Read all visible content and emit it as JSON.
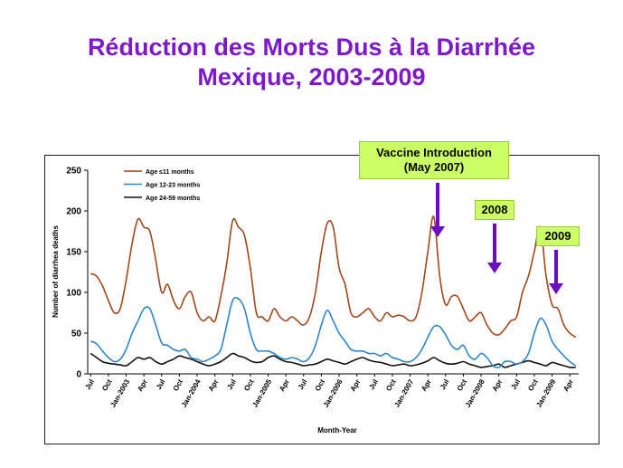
{
  "title": {
    "line1": "Réduction des Morts Dus à la Diarrhée",
    "line2": "Mexique, 2003-2009"
  },
  "callouts": {
    "vaccine_line1": "Vaccine Introduction",
    "vaccine_line2": "(May 2007)",
    "y2008": "2008",
    "y2009": "2009"
  },
  "colors": {
    "title": "#7c19c9",
    "arrow": "#6a0fc0",
    "callout_bg": "#ccff66",
    "series_11": "#a0471c",
    "series_12_23": "#2e86c9",
    "series_24_59": "#111111"
  },
  "chart_data": {
    "type": "line",
    "xlabel": "Month-Year",
    "ylabel": "Number of diarrhea deaths",
    "ylim": [
      0,
      250
    ],
    "yticks": [
      0,
      50,
      100,
      150,
      200,
      250
    ],
    "x_tick_labels": [
      "Jul",
      "Oct",
      "Jan-2003",
      "Apr",
      "Jul",
      "Oct",
      "Jan-2004",
      "Apr",
      "Jul",
      "Oct",
      "Jan-2005",
      "Apr",
      "Jul",
      "Oct",
      "Jan-2006",
      "Apr",
      "Jul",
      "Oct",
      "Jan-2007",
      "Apr",
      "Jul",
      "Oct",
      "Jan-2008",
      "Apr",
      "Jul",
      "Oct",
      "Jan-2009",
      "Apr"
    ],
    "x_tick_month_index": [
      0,
      3,
      6,
      9,
      12,
      15,
      18,
      21,
      24,
      27,
      30,
      33,
      36,
      39,
      42,
      45,
      48,
      51,
      54,
      57,
      60,
      63,
      66,
      69,
      72,
      75,
      78,
      81
    ],
    "n_months": 83,
    "legend_placement": "top-left",
    "series": [
      {
        "name": "Age ≤11 months",
        "color": "#a0471c",
        "values": [
          123,
          120,
          108,
          90,
          75,
          80,
          115,
          160,
          190,
          180,
          175,
          140,
          100,
          110,
          90,
          80,
          95,
          100,
          75,
          65,
          70,
          65,
          95,
          135,
          188,
          180,
          170,
          130,
          75,
          70,
          65,
          80,
          70,
          65,
          70,
          65,
          60,
          70,
          100,
          150,
          185,
          180,
          130,
          110,
          75,
          70,
          75,
          80,
          70,
          65,
          75,
          70,
          72,
          70,
          65,
          70,
          100,
          150,
          193,
          120,
          85,
          95,
          95,
          80,
          65,
          70,
          75,
          60,
          50,
          48,
          55,
          65,
          70,
          100,
          120,
          150,
          180,
          120,
          85,
          80,
          60,
          50,
          45
        ]
      },
      {
        "name": "Age 12-23 months",
        "color": "#2e86c9",
        "values": [
          40,
          37,
          28,
          20,
          15,
          18,
          30,
          50,
          65,
          80,
          80,
          60,
          38,
          35,
          30,
          28,
          30,
          20,
          18,
          15,
          18,
          22,
          30,
          60,
          90,
          92,
          80,
          50,
          30,
          28,
          28,
          25,
          20,
          18,
          20,
          18,
          15,
          20,
          35,
          60,
          78,
          65,
          50,
          40,
          30,
          28,
          28,
          25,
          25,
          22,
          25,
          20,
          18,
          15,
          15,
          20,
          30,
          45,
          58,
          58,
          48,
          35,
          30,
          35,
          22,
          18,
          25,
          20,
          10,
          8,
          15,
          15,
          12,
          15,
          25,
          50,
          68,
          60,
          40,
          30,
          22,
          15,
          10
        ]
      },
      {
        "name": "Age 24-59 months",
        "color": "#111111",
        "values": [
          25,
          20,
          15,
          13,
          12,
          11,
          10,
          15,
          20,
          18,
          20,
          15,
          12,
          15,
          18,
          22,
          20,
          18,
          15,
          12,
          10,
          12,
          15,
          20,
          25,
          22,
          20,
          16,
          14,
          15,
          20,
          22,
          18,
          15,
          14,
          12,
          10,
          11,
          12,
          15,
          18,
          16,
          14,
          12,
          15,
          18,
          20,
          17,
          15,
          14,
          12,
          10,
          11,
          12,
          10,
          11,
          13,
          16,
          20,
          16,
          13,
          12,
          13,
          15,
          12,
          10,
          8,
          9,
          10,
          12,
          8,
          10,
          12,
          14,
          16,
          14,
          12,
          10,
          14,
          12,
          10,
          8,
          8
        ]
      }
    ]
  }
}
